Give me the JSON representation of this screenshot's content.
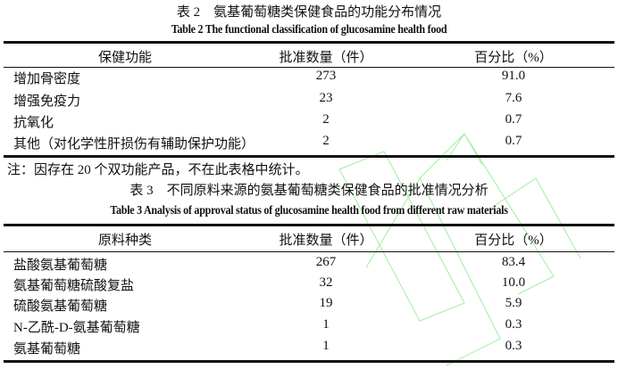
{
  "table2": {
    "title_cn": "表 2　氨基葡萄糖类保健食品的功能分布情况",
    "title_en": "Table 2 The functional classification of glucosamine health food",
    "headers": [
      "保健功能",
      "批准数量（件）",
      "百分比（%）"
    ],
    "rows": [
      [
        "增加骨密度",
        "273",
        "91.0"
      ],
      [
        "增强免疫力",
        "23",
        "7.6"
      ],
      [
        "抗氧化",
        "2",
        "0.7"
      ],
      [
        "其他（对化学性肝损伤有辅助保护功能）",
        "2",
        "0.7"
      ]
    ],
    "note": "注：因存在 20 个双功能产品，不在此表格中统计。"
  },
  "table3": {
    "title_cn": "表 3　不同原料来源的氨基葡萄糖类保健食品的批准情况分析",
    "title_en": "Table 3 Analysis of approval status of glucosamine health food from different raw materials",
    "headers": [
      "原料种类",
      "批准数量（件）",
      "百分比（%）"
    ],
    "rows": [
      [
        "盐酸氨基葡萄糖",
        "267",
        "83.4"
      ],
      [
        "氨基葡萄糖硫酸复盐",
        "32",
        "10.0"
      ],
      [
        "硫酸氨基葡萄糖",
        "19",
        "5.9"
      ],
      [
        "N-乙酰-D-氨基葡萄糖",
        "1",
        "0.3"
      ],
      [
        "氨基葡萄糖",
        "1",
        "0.3"
      ]
    ]
  },
  "colors": {
    "watermark": "#7fe57f",
    "text": "#111111"
  }
}
